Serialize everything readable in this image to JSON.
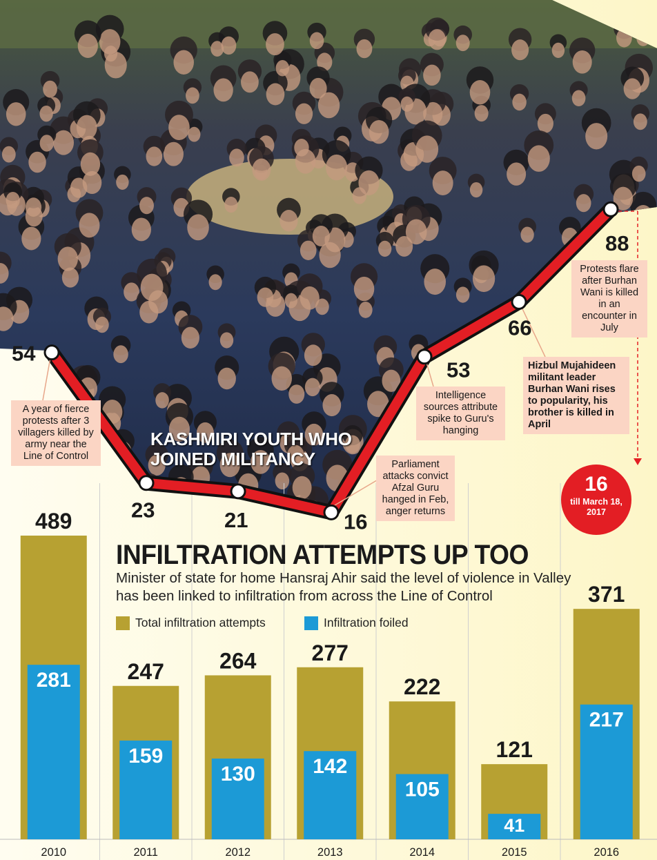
{
  "photo_title": [
    "KASHMIRI YOUTH WHO",
    "JOINED MILITANCY"
  ],
  "colors": {
    "total_bar": "#b7a132",
    "foiled_bar": "#1c9ad6",
    "line_red": "#e31e24",
    "callout_bg": "#fbd5c4",
    "badge_red": "#e31e24",
    "panel_yellow": "#fdf8d4"
  },
  "icons": {
    "photo": "crowd-photo",
    "badge": "red-circle-badge"
  },
  "chart_data": [
    {
      "type": "line",
      "title": "KASHMIRI YOUTH WHO JOINED MILITANCY",
      "categories": [
        "2010",
        "2011",
        "2012",
        "2013",
        "2014",
        "2015",
        "2016"
      ],
      "values": [
        54,
        23,
        21,
        16,
        53,
        66,
        88
      ],
      "value_labels": [
        "54",
        "23",
        "21",
        "16",
        "53",
        "66",
        "88"
      ],
      "annotations": [
        {
          "year": "2010",
          "text": "A year of fierce protests after 3 villagers killed by army near the Line of Control"
        },
        {
          "year": "2013",
          "text": "Parliament attacks convict Afzal Guru hanged in Feb, anger returns"
        },
        {
          "year": "2014",
          "text": "Intelligence sources attribute spike to Guru's hanging"
        },
        {
          "year": "2015",
          "text": "Hizbul Mujahideen militant leader Burhan Wani rises to popularity, his brother is killed in April"
        },
        {
          "year": "2016",
          "text": "Protests flare after Burhan Wani is killed in an encounter in July"
        }
      ],
      "extra": {
        "value": "16",
        "note": "till March 18, 2017"
      }
    },
    {
      "type": "bar",
      "title": "INFILTRATION ATTEMPTS  UP TOO",
      "subtitle": "Minister of state for home Hansraj Ahir said the level of violence in Valley has been linked to infiltration from across the Line of Control",
      "categories": [
        "2010",
        "2011",
        "2012",
        "2013",
        "2014",
        "2015",
        "2016"
      ],
      "series": [
        {
          "name": "Total infiltration attempts",
          "values": [
            489,
            247,
            264,
            277,
            222,
            121,
            371
          ]
        },
        {
          "name": "Infiltration foiled",
          "values": [
            281,
            159,
            130,
            142,
            105,
            41,
            217
          ]
        }
      ],
      "ylim": [
        0,
        500
      ]
    }
  ]
}
